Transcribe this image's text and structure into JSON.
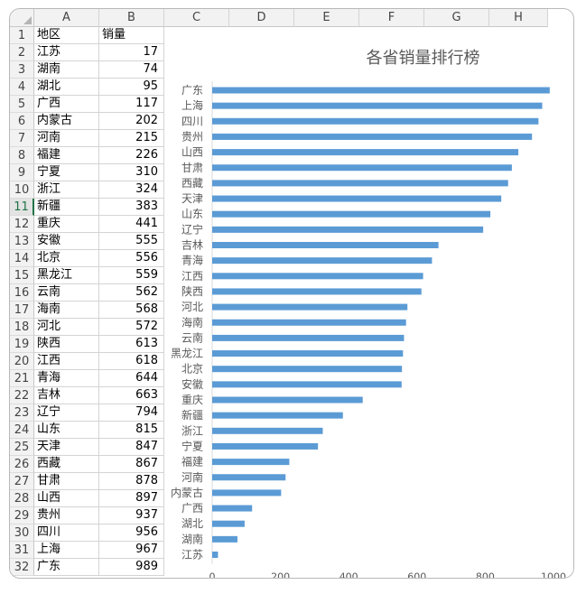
{
  "columns": [
    "A",
    "B",
    "C",
    "D",
    "E",
    "F",
    "G",
    "H"
  ],
  "rows": [
    "1",
    "2",
    "3",
    "4",
    "5",
    "6",
    "7",
    "8",
    "9",
    "10",
    "11",
    "12",
    "13",
    "14",
    "15",
    "16",
    "17",
    "18",
    "19",
    "20",
    "21",
    "22",
    "23",
    "24",
    "25",
    "26",
    "27",
    "28",
    "29",
    "30",
    "31",
    "32"
  ],
  "selected_row": "11",
  "table": {
    "header": {
      "region": "地区",
      "sales": "销量"
    },
    "records": [
      {
        "region": "江苏",
        "sales": "17"
      },
      {
        "region": "湖南",
        "sales": "74"
      },
      {
        "region": "湖北",
        "sales": "95"
      },
      {
        "region": "广西",
        "sales": "117"
      },
      {
        "region": "内蒙古",
        "sales": "202"
      },
      {
        "region": "河南",
        "sales": "215"
      },
      {
        "region": "福建",
        "sales": "226"
      },
      {
        "region": "宁夏",
        "sales": "310"
      },
      {
        "region": "浙江",
        "sales": "324"
      },
      {
        "region": "新疆",
        "sales": "383"
      },
      {
        "region": "重庆",
        "sales": "441"
      },
      {
        "region": "安徽",
        "sales": "555"
      },
      {
        "region": "北京",
        "sales": "556"
      },
      {
        "region": "黑龙江",
        "sales": "559"
      },
      {
        "region": "云南",
        "sales": "562"
      },
      {
        "region": "海南",
        "sales": "568"
      },
      {
        "region": "河北",
        "sales": "572"
      },
      {
        "region": "陕西",
        "sales": "613"
      },
      {
        "region": "江西",
        "sales": "618"
      },
      {
        "region": "青海",
        "sales": "644"
      },
      {
        "region": "吉林",
        "sales": "663"
      },
      {
        "region": "辽宁",
        "sales": "794"
      },
      {
        "region": "山东",
        "sales": "815"
      },
      {
        "region": "天津",
        "sales": "847"
      },
      {
        "region": "西藏",
        "sales": "867"
      },
      {
        "region": "甘肃",
        "sales": "878"
      },
      {
        "region": "山西",
        "sales": "897"
      },
      {
        "region": "贵州",
        "sales": "937"
      },
      {
        "region": "四川",
        "sales": "956"
      },
      {
        "region": "上海",
        "sales": "967"
      },
      {
        "region": "广东",
        "sales": "989"
      }
    ]
  },
  "chart_data": {
    "type": "bar",
    "orientation": "horizontal",
    "title": "各省销量排行榜",
    "categories": [
      "江苏",
      "湖南",
      "湖北",
      "广西",
      "内蒙古",
      "河南",
      "福建",
      "宁夏",
      "浙江",
      "新疆",
      "重庆",
      "安徽",
      "北京",
      "黑龙江",
      "云南",
      "海南",
      "河北",
      "陕西",
      "江西",
      "青海",
      "吉林",
      "辽宁",
      "山东",
      "天津",
      "西藏",
      "甘肃",
      "山西",
      "贵州",
      "四川",
      "上海",
      "广东"
    ],
    "values": [
      17,
      74,
      95,
      117,
      202,
      215,
      226,
      310,
      324,
      383,
      441,
      555,
      556,
      559,
      562,
      568,
      572,
      613,
      618,
      644,
      663,
      794,
      815,
      847,
      867,
      878,
      897,
      937,
      956,
      967,
      989
    ],
    "xlim": [
      0,
      1000
    ],
    "xticks": [
      "0",
      "200",
      "400",
      "600",
      "800",
      "1000"
    ],
    "grid": false,
    "legend": "none",
    "bar_color": "#5b9bd5",
    "label_color": "#595959"
  }
}
